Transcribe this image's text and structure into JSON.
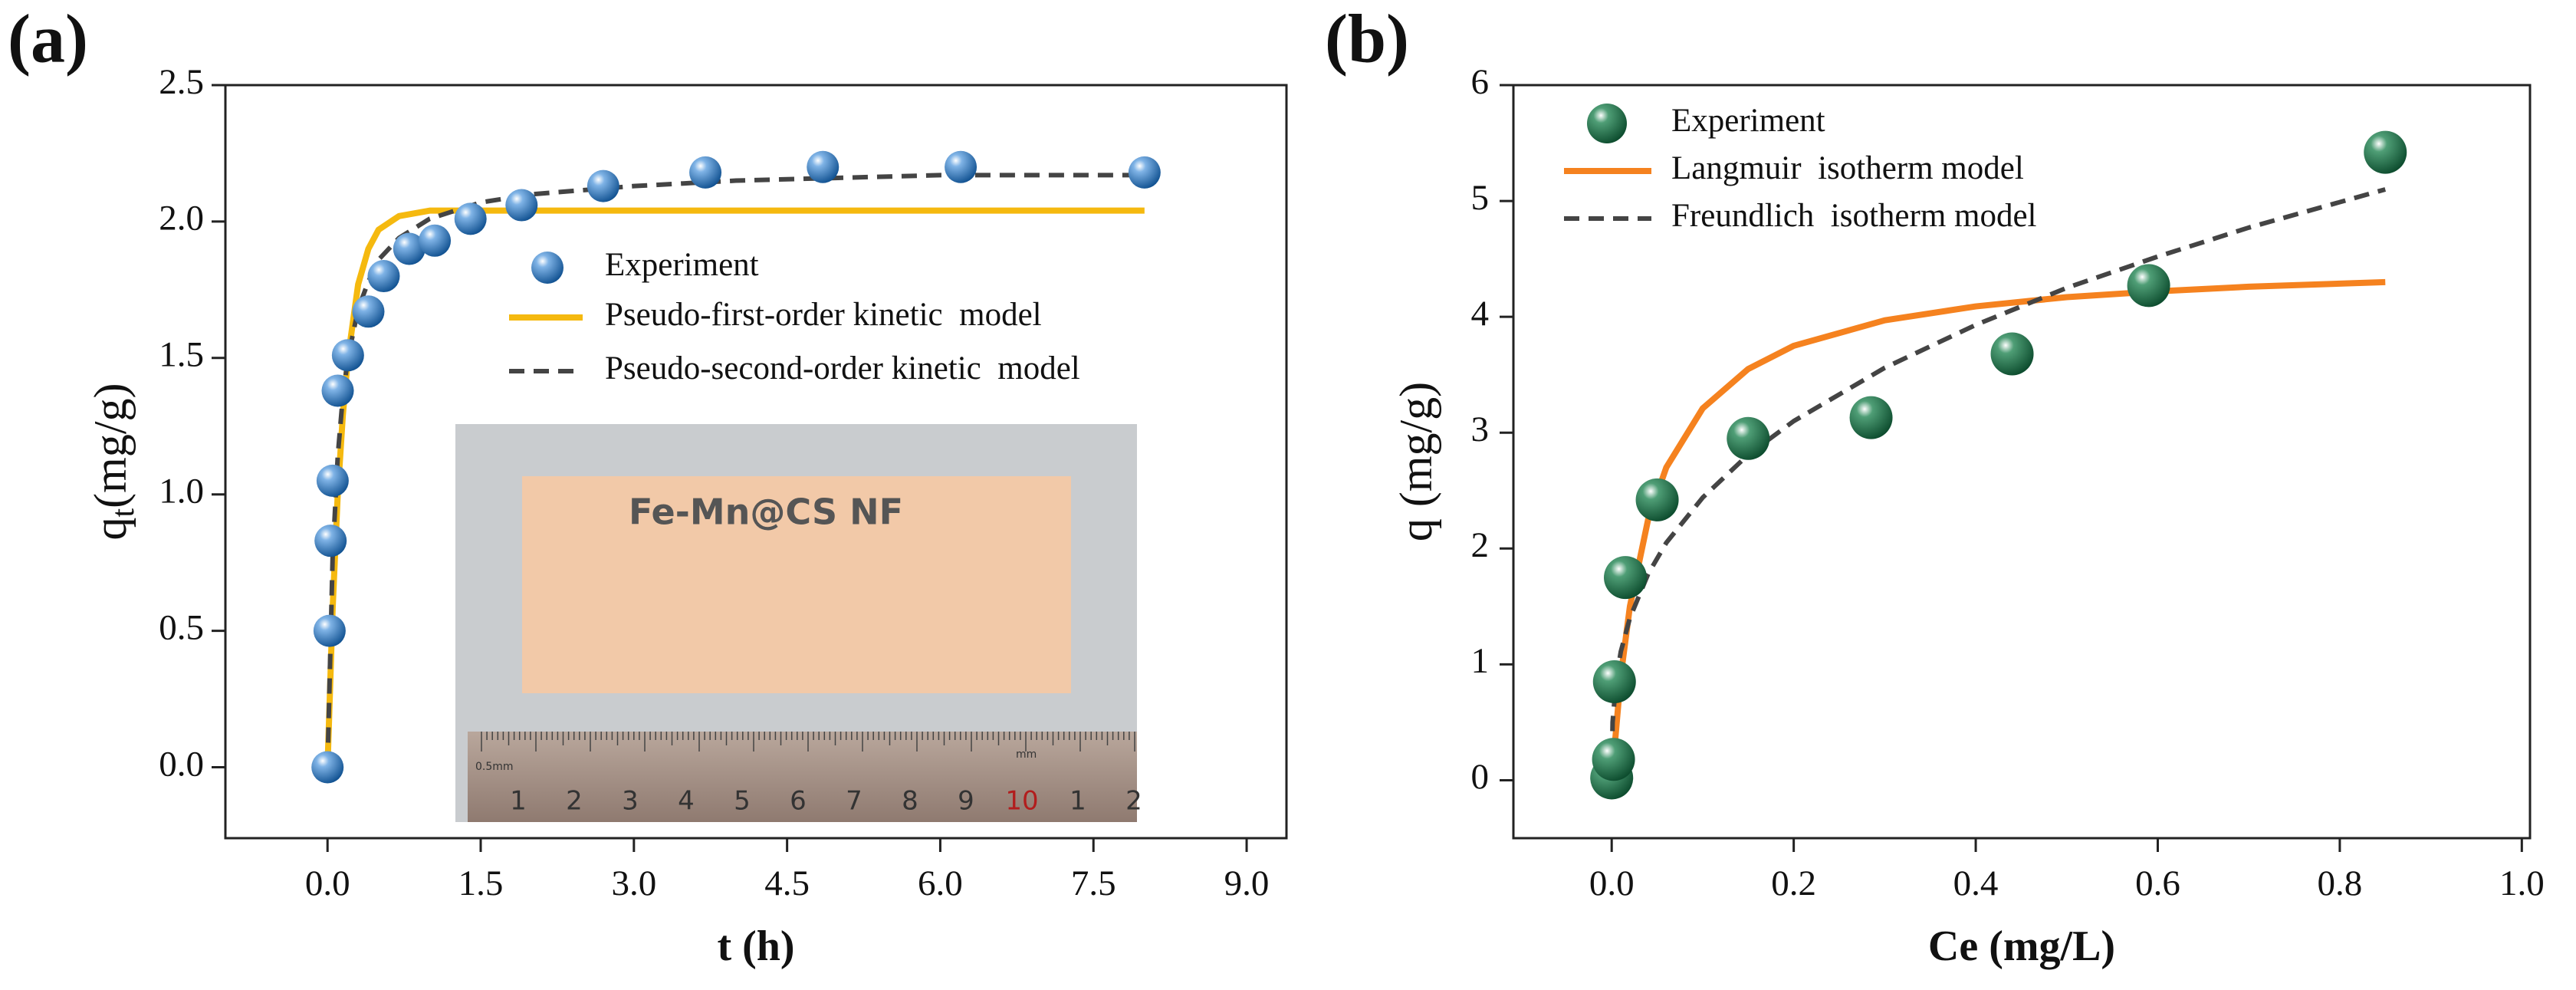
{
  "chart_data": [
    {
      "type": "scatter",
      "panel_label": "(a)",
      "xlabel": "t (h)",
      "ylabel": "q",
      "ylabel_sub": "t",
      "ylabel_unit": "(mg/g)",
      "xlim": [
        -1.0,
        9.39
      ],
      "ylim": [
        -0.26,
        2.5
      ],
      "xticks": [
        {
          "value": 0,
          "label": "0.0"
        },
        1.5,
        {
          "value": 3,
          "label": "3.0"
        },
        4.5,
        {
          "value": 6,
          "label": "6.0"
        },
        7.5,
        {
          "value": 9,
          "label": "9.0"
        }
      ],
      "yticks": [
        {
          "value": 0,
          "label": "0.0"
        },
        0.5,
        {
          "value": 1,
          "label": "1.0"
        },
        1.5,
        {
          "value": 2,
          "label": "2.0"
        },
        2.5
      ],
      "legend": "upper-center",
      "series": [
        {
          "name": "Experiment",
          "style": "marker",
          "color": "#1f6fb5",
          "x": [
            0,
            0.02,
            0.03,
            0.05,
            0.1,
            0.2,
            0.4,
            0.55,
            0.8,
            1.05,
            1.4,
            1.9,
            2.7,
            3.7,
            4.85,
            6.2,
            8.0
          ],
          "values": [
            0,
            0.5,
            0.83,
            1.05,
            1.38,
            1.51,
            1.67,
            1.8,
            1.9,
            1.93,
            2.01,
            2.06,
            2.13,
            2.18,
            2.2,
            2.2,
            2.18
          ]
        },
        {
          "name": "Pseudo-first-order kinetic  model",
          "style": "solid",
          "color": "#f5b90f",
          "x": [
            0,
            0.05,
            0.1,
            0.15,
            0.2,
            0.3,
            0.4,
            0.5,
            0.7,
            1.0,
            1.5,
            2,
            3,
            4,
            5,
            6,
            7,
            8
          ],
          "values": [
            0,
            0.58,
            1.0,
            1.29,
            1.5,
            1.77,
            1.9,
            1.97,
            2.02,
            2.04,
            2.04,
            2.04,
            2.04,
            2.04,
            2.04,
            2.04,
            2.04,
            2.04
          ]
        },
        {
          "name": "Pseudo-second-order kinetic  model",
          "style": "dashed",
          "color": "#444444",
          "x": [
            0,
            0.05,
            0.1,
            0.15,
            0.2,
            0.3,
            0.4,
            0.5,
            0.7,
            1.0,
            1.5,
            2,
            3,
            4,
            5,
            6,
            7,
            8
          ],
          "values": [
            0,
            0.77,
            1.14,
            1.36,
            1.5,
            1.68,
            1.78,
            1.86,
            1.94,
            2.01,
            2.07,
            2.1,
            2.13,
            2.15,
            2.16,
            2.17,
            2.17,
            2.17
          ]
        }
      ],
      "inset_label": "Fe-Mn@CS NF",
      "ruler_labels": [
        "1",
        "2",
        "3",
        "4",
        "5",
        "6",
        "7",
        "8",
        "9",
        "10",
        "1",
        "2"
      ],
      "ruler_small_labels": [
        "0.5mm",
        "mm"
      ]
    },
    {
      "type": "scatter",
      "panel_label": "(b)",
      "xlabel": "Ce (mg/L)",
      "ylabel": "q (mg/g)",
      "xlim": [
        -0.108,
        1.009
      ],
      "ylim": [
        -0.5,
        6
      ],
      "xticks": [
        {
          "value": 0,
          "label": "0.0"
        },
        0.2,
        0.4,
        0.6,
        0.8,
        {
          "value": 1,
          "label": "1.0"
        }
      ],
      "yticks": [
        0,
        1,
        2,
        3,
        4,
        5,
        6
      ],
      "legend": "upper-left",
      "series": [
        {
          "name": "Experiment",
          "style": "marker",
          "color": "#1a6b45",
          "x": [
            0,
            0.002,
            0.003,
            0.015,
            0.05,
            0.15,
            0.285,
            0.44,
            0.59,
            0.85
          ],
          "values": [
            0.02,
            0.18,
            0.85,
            1.75,
            2.42,
            2.95,
            3.13,
            3.68,
            4.27,
            5.42
          ]
        },
        {
          "name": "Langmuir  isotherm model",
          "style": "solid",
          "color": "#f5821f",
          "x": [
            0,
            0.01,
            0.02,
            0.04,
            0.06,
            0.1,
            0.15,
            0.2,
            0.3,
            0.4,
            0.5,
            0.6,
            0.7,
            0.85
          ],
          "values": [
            0,
            0.9,
            1.5,
            2.25,
            2.7,
            3.21,
            3.55,
            3.75,
            3.97,
            4.09,
            4.17,
            4.22,
            4.26,
            4.3
          ]
        },
        {
          "name": "Freundlich  isotherm model",
          "style": "dashed",
          "color": "#444444",
          "x": [
            0,
            0.001,
            0.005,
            0.01,
            0.02,
            0.04,
            0.06,
            0.1,
            0.15,
            0.2,
            0.3,
            0.4,
            0.5,
            0.6,
            0.7,
            0.85
          ],
          "values": [
            0,
            0.5,
            0.87,
            1.11,
            1.4,
            1.78,
            2.05,
            2.44,
            2.81,
            3.1,
            3.56,
            3.93,
            4.25,
            4.52,
            4.77,
            5.1
          ]
        }
      ]
    }
  ]
}
